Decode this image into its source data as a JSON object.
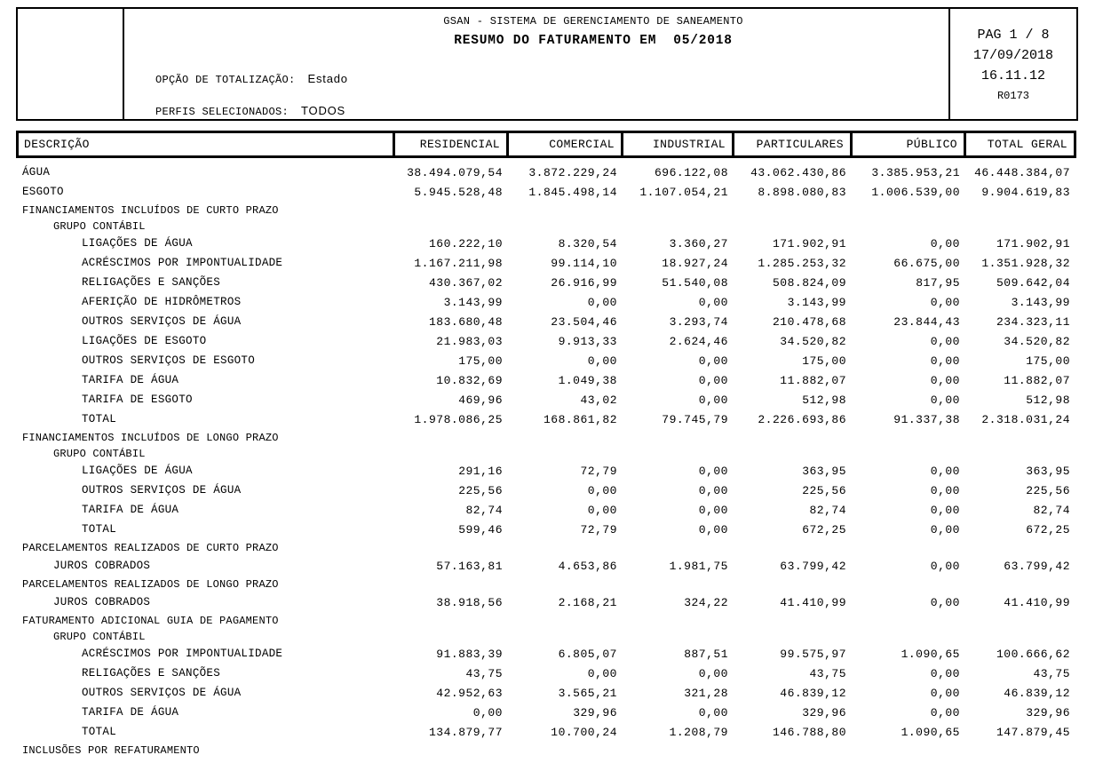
{
  "header": {
    "system_title": "GSAN - SISTEMA DE GERENCIAMENTO DE SANEAMENTO",
    "report_title": "RESUMO DO FATURAMENTO EM  05/2018",
    "totalization": {
      "label": "OPÇÃO DE TOTALIZAÇÃO:",
      "value": "Estado"
    },
    "profiles": {
      "label": "PERFIS SELECIONADOS:",
      "value": "TODOS"
    },
    "pagination": "PAG 1 / 8",
    "date": "17/09/2018",
    "time": "16.11.12",
    "report_code": "R0173"
  },
  "table": {
    "columns": [
      "DESCRIÇÃO",
      "RESIDENCIAL",
      "COMERCIAL",
      "INDUSTRIAL",
      "PARTICULARES",
      "PÚBLICO",
      "TOTAL GERAL"
    ],
    "rows": [
      {
        "label": "ÁGUA",
        "type": "data",
        "indent": 0,
        "values": [
          "38.494.079,54",
          "3.872.229,24",
          "696.122,08",
          "43.062.430,86",
          "3.385.953,21",
          "46.448.384,07"
        ]
      },
      {
        "label": "ESGOTO",
        "type": "data",
        "indent": 0,
        "values": [
          "5.945.528,48",
          "1.845.498,14",
          "1.107.054,21",
          "8.898.080,83",
          "1.006.539,00",
          "9.904.619,83"
        ]
      },
      {
        "label": "FINANCIAMENTOS INCLUÍDOS DE CURTO PRAZO",
        "type": "section",
        "indent": 0,
        "values": []
      },
      {
        "label": "GRUPO CONTÁBIL",
        "type": "group",
        "indent": 1,
        "values": []
      },
      {
        "label": "LIGAÇÕES DE ÁGUA",
        "type": "data",
        "indent": 2,
        "values": [
          "160.222,10",
          "8.320,54",
          "3.360,27",
          "171.902,91",
          "0,00",
          "171.902,91"
        ]
      },
      {
        "label": "ACRÉSCIMOS POR IMPONTUALIDADE",
        "type": "data",
        "indent": 2,
        "values": [
          "1.167.211,98",
          "99.114,10",
          "18.927,24",
          "1.285.253,32",
          "66.675,00",
          "1.351.928,32"
        ]
      },
      {
        "label": "RELIGAÇÕES E SANÇÕES",
        "type": "data",
        "indent": 2,
        "values": [
          "430.367,02",
          "26.916,99",
          "51.540,08",
          "508.824,09",
          "817,95",
          "509.642,04"
        ]
      },
      {
        "label": "AFERIÇÃO DE HIDRÔMETROS",
        "type": "data",
        "indent": 2,
        "values": [
          "3.143,99",
          "0,00",
          "0,00",
          "3.143,99",
          "0,00",
          "3.143,99"
        ]
      },
      {
        "label": "OUTROS SERVIÇOS DE ÁGUA",
        "type": "data",
        "indent": 2,
        "values": [
          "183.680,48",
          "23.504,46",
          "3.293,74",
          "210.478,68",
          "23.844,43",
          "234.323,11"
        ]
      },
      {
        "label": "LIGAÇÕES DE ESGOTO",
        "type": "data",
        "indent": 2,
        "values": [
          "21.983,03",
          "9.913,33",
          "2.624,46",
          "34.520,82",
          "0,00",
          "34.520,82"
        ]
      },
      {
        "label": "OUTROS SERVIÇOS DE ESGOTO",
        "type": "data",
        "indent": 2,
        "values": [
          "175,00",
          "0,00",
          "0,00",
          "175,00",
          "0,00",
          "175,00"
        ]
      },
      {
        "label": "TARIFA DE ÁGUA",
        "type": "data",
        "indent": 2,
        "values": [
          "10.832,69",
          "1.049,38",
          "0,00",
          "11.882,07",
          "0,00",
          "11.882,07"
        ]
      },
      {
        "label": "TARIFA DE ESGOTO",
        "type": "data",
        "indent": 2,
        "values": [
          "469,96",
          "43,02",
          "0,00",
          "512,98",
          "0,00",
          "512,98"
        ]
      },
      {
        "label": "TOTAL",
        "type": "data",
        "indent": 2,
        "values": [
          "1.978.086,25",
          "168.861,82",
          "79.745,79",
          "2.226.693,86",
          "91.337,38",
          "2.318.031,24"
        ]
      },
      {
        "label": "FINANCIAMENTOS INCLUÍDOS DE LONGO PRAZO",
        "type": "section",
        "indent": 0,
        "values": []
      },
      {
        "label": "GRUPO CONTÁBIL",
        "type": "group",
        "indent": 1,
        "values": []
      },
      {
        "label": "LIGAÇÕES DE ÁGUA",
        "type": "data",
        "indent": 2,
        "values": [
          "291,16",
          "72,79",
          "0,00",
          "363,95",
          "0,00",
          "363,95"
        ]
      },
      {
        "label": "OUTROS SERVIÇOS DE ÁGUA",
        "type": "data",
        "indent": 2,
        "values": [
          "225,56",
          "0,00",
          "0,00",
          "225,56",
          "0,00",
          "225,56"
        ]
      },
      {
        "label": "TARIFA DE ÁGUA",
        "type": "data",
        "indent": 2,
        "values": [
          "82,74",
          "0,00",
          "0,00",
          "82,74",
          "0,00",
          "82,74"
        ]
      },
      {
        "label": "TOTAL",
        "type": "data",
        "indent": 2,
        "values": [
          "599,46",
          "72,79",
          "0,00",
          "672,25",
          "0,00",
          "672,25"
        ]
      },
      {
        "label": "PARCELAMENTOS REALIZADOS DE CURTO PRAZO",
        "type": "section",
        "indent": 0,
        "values": []
      },
      {
        "label": "JUROS COBRADOS",
        "type": "data",
        "indent": 1,
        "values": [
          "57.163,81",
          "4.653,86",
          "1.981,75",
          "63.799,42",
          "0,00",
          "63.799,42"
        ]
      },
      {
        "label": "PARCELAMENTOS REALIZADOS DE LONGO PRAZO",
        "type": "section",
        "indent": 0,
        "values": []
      },
      {
        "label": "JUROS COBRADOS",
        "type": "data",
        "indent": 1,
        "values": [
          "38.918,56",
          "2.168,21",
          "324,22",
          "41.410,99",
          "0,00",
          "41.410,99"
        ]
      },
      {
        "label": "FATURAMENTO ADICIONAL GUIA DE PAGAMENTO",
        "type": "section",
        "indent": 0,
        "values": []
      },
      {
        "label": "GRUPO CONTÁBIL",
        "type": "group",
        "indent": 1,
        "values": []
      },
      {
        "label": "ACRÉSCIMOS POR IMPONTUALIDADE",
        "type": "data",
        "indent": 2,
        "values": [
          "91.883,39",
          "6.805,07",
          "887,51",
          "99.575,97",
          "1.090,65",
          "100.666,62"
        ]
      },
      {
        "label": "RELIGAÇÕES E SANÇÕES",
        "type": "data",
        "indent": 2,
        "values": [
          "43,75",
          "0,00",
          "0,00",
          "43,75",
          "0,00",
          "43,75"
        ]
      },
      {
        "label": "OUTROS SERVIÇOS DE ÁGUA",
        "type": "data",
        "indent": 2,
        "values": [
          "42.952,63",
          "3.565,21",
          "321,28",
          "46.839,12",
          "0,00",
          "46.839,12"
        ]
      },
      {
        "label": "TARIFA DE ÁGUA",
        "type": "data",
        "indent": 2,
        "values": [
          "0,00",
          "329,96",
          "0,00",
          "329,96",
          "0,00",
          "329,96"
        ]
      },
      {
        "label": "TOTAL",
        "type": "data",
        "indent": 2,
        "values": [
          "134.879,77",
          "10.700,24",
          "1.208,79",
          "146.788,80",
          "1.090,65",
          "147.879,45"
        ]
      },
      {
        "label": "INCLUSÕES POR REFATURAMENTO",
        "type": "section",
        "indent": 0,
        "values": []
      }
    ]
  }
}
